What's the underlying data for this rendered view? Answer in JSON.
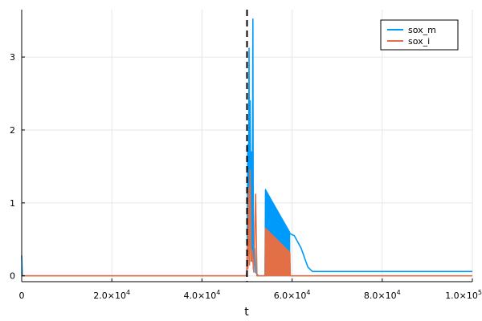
{
  "chart_data": {
    "type": "line",
    "title": "",
    "xlabel": "t",
    "ylabel": "",
    "xlim": [
      0,
      100000
    ],
    "ylim": [
      -0.08,
      3.65
    ],
    "grid": true,
    "legend_position": "top-right",
    "x_ticks": [
      {
        "value": 0,
        "label": "0"
      },
      {
        "value": 20000,
        "label": "2.0×10",
        "exp": "4"
      },
      {
        "value": 40000,
        "label": "4.0×10",
        "exp": "4"
      },
      {
        "value": 60000,
        "label": "6.0×10",
        "exp": "4"
      },
      {
        "value": 80000,
        "label": "8.0×10",
        "exp": "4"
      },
      {
        "value": 100000,
        "label": "1.0×10",
        "exp": "5"
      }
    ],
    "y_ticks": [
      {
        "value": 0,
        "label": "0"
      },
      {
        "value": 1,
        "label": "1"
      },
      {
        "value": 2,
        "label": "2"
      },
      {
        "value": 3,
        "label": "3"
      }
    ],
    "vline": {
      "x": 50000,
      "style": "dashed",
      "color": "#000000"
    },
    "series": [
      {
        "name": "sox_m",
        "color": "#009AFA",
        "points": [
          [
            0,
            0.28
          ],
          [
            150,
            0.0
          ],
          [
            49800,
            0.0
          ],
          [
            50000,
            0.05
          ],
          [
            50150,
            1.8
          ],
          [
            50300,
            0.4
          ],
          [
            50450,
            3.12
          ],
          [
            50550,
            0.3
          ],
          [
            50700,
            2.4
          ],
          [
            50850,
            0.6
          ],
          [
            51000,
            1.7
          ],
          [
            51150,
            0.2
          ],
          [
            51300,
            3.52
          ],
          [
            51400,
            0.1
          ],
          [
            51500,
            0.35
          ],
          [
            51700,
            0.38
          ],
          [
            51900,
            0.05
          ],
          [
            52500,
            0.0
          ],
          [
            54000,
            0.0
          ],
          [
            54100,
            1.18
          ],
          [
            59500,
            0.58
          ],
          [
            60500,
            0.55
          ],
          [
            62000,
            0.38
          ],
          [
            63500,
            0.12
          ],
          [
            64500,
            0.06
          ],
          [
            100000,
            0.06
          ]
        ],
        "band": {
          "x_start": 54100,
          "x_end": 59500,
          "upper_start": 1.18,
          "upper_end": 0.6,
          "lower": 0.0
        }
      },
      {
        "name": "sox_i",
        "color": "#E26F46",
        "points": [
          [
            0,
            0.0
          ],
          [
            49900,
            0.0
          ],
          [
            50050,
            0.4
          ],
          [
            50200,
            0.1
          ],
          [
            50400,
            1.2
          ],
          [
            50550,
            0.15
          ],
          [
            50700,
            1.45
          ],
          [
            50900,
            0.2
          ],
          [
            51100,
            0.35
          ],
          [
            51500,
            0.05
          ],
          [
            51900,
            1.12
          ],
          [
            52200,
            0.0
          ],
          [
            54000,
            0.0
          ],
          [
            54100,
            0.65
          ],
          [
            59500,
            0.32
          ],
          [
            59600,
            0.0
          ],
          [
            100000,
            0.0
          ]
        ],
        "band": {
          "x_start": 54100,
          "x_end": 59500,
          "upper_start": 0.65,
          "upper_end": 0.32,
          "lower": 0.0
        }
      }
    ]
  }
}
